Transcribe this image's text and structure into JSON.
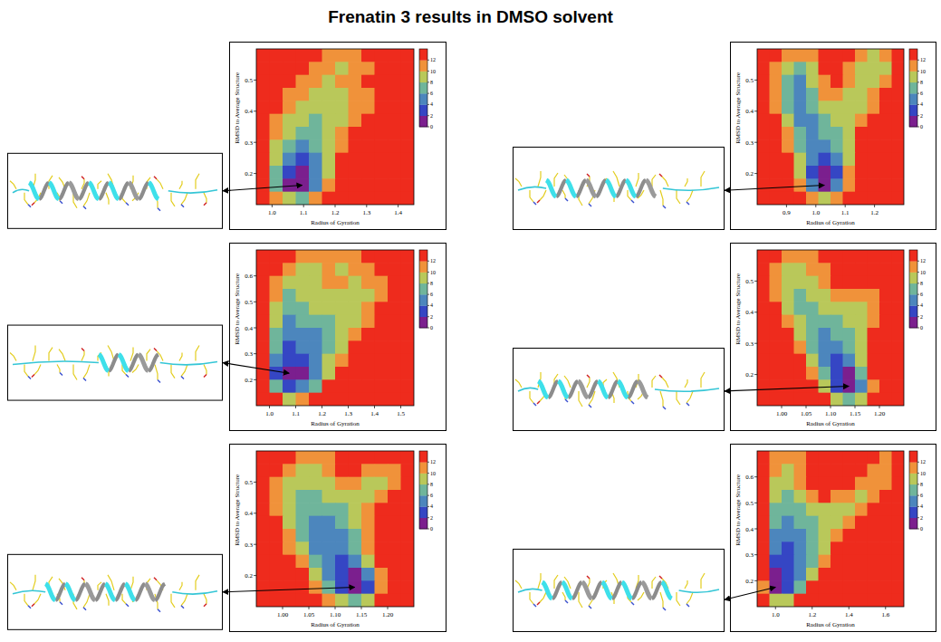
{
  "title": "Frenatin 3 results in DMSO solvent",
  "chart_data": [
    {
      "type": "heatmap",
      "x_label": "Radius of Gyration",
      "y_label": "RMSD to Average Structure",
      "xlim": [
        0.95,
        1.45
      ],
      "ylim": [
        0.1,
        0.6
      ],
      "xticks": [
        {
          "value": 1,
          "label": "1.0"
        },
        1.1,
        1.2,
        1.3,
        1.4
      ],
      "yticks": [
        0.2,
        0.3,
        0.4,
        0.5
      ],
      "colorbar_lim": [
        0,
        14
      ],
      "colorbar_ticks": [
        0,
        2,
        4,
        6,
        8,
        10,
        12
      ],
      "cells": [
        [
          13,
          13,
          13,
          13,
          13,
          11,
          10,
          11,
          13,
          13,
          13,
          13
        ],
        [
          13,
          13,
          13,
          13,
          11,
          10,
          9,
          10,
          11,
          13,
          13,
          13
        ],
        [
          13,
          13,
          13,
          11,
          10,
          9,
          10,
          11,
          13,
          13,
          13,
          13
        ],
        [
          13,
          13,
          11,
          10,
          9,
          8,
          9,
          10,
          11,
          13,
          13,
          13
        ],
        [
          13,
          13,
          10,
          9,
          8,
          8,
          9,
          10,
          11,
          13,
          13,
          13
        ],
        [
          13,
          11,
          9,
          8,
          7,
          8,
          9,
          11,
          13,
          13,
          13,
          13
        ],
        [
          13,
          10,
          8,
          6,
          7,
          8,
          10,
          12,
          13,
          13,
          13,
          13
        ],
        [
          13,
          9,
          6,
          5,
          6,
          8,
          11,
          13,
          13,
          13,
          13,
          13
        ],
        [
          13,
          8,
          4,
          3,
          5,
          8,
          12,
          13,
          13,
          13,
          13,
          13
        ],
        [
          13,
          6,
          2,
          1,
          4,
          9,
          13,
          13,
          13,
          13,
          13,
          13
        ],
        [
          13,
          7,
          1,
          0,
          5,
          11,
          13,
          13,
          13,
          13,
          13,
          13
        ],
        [
          13,
          11,
          8,
          7,
          10,
          13,
          13,
          13,
          13,
          13,
          13,
          13
        ]
      ]
    },
    {
      "type": "heatmap",
      "x_label": "Radius of Gyration",
      "y_label": "RMSD to Average Structure",
      "xlim": [
        0.8,
        1.3
      ],
      "ylim": [
        0.1,
        0.6
      ],
      "xticks": [
        0.9,
        {
          "value": 1,
          "label": "1.0"
        },
        1.1,
        1.2
      ],
      "yticks": [
        0.2,
        0.3,
        0.4,
        0.5
      ],
      "colorbar_lim": [
        0,
        14
      ],
      "colorbar_ticks": [
        0,
        2,
        4,
        6,
        8,
        10,
        12
      ],
      "cells": [
        [
          13,
          13,
          11,
          10,
          11,
          13,
          13,
          13,
          10,
          9,
          10,
          13
        ],
        [
          13,
          11,
          8,
          7,
          9,
          12,
          13,
          11,
          9,
          8,
          9,
          12
        ],
        [
          13,
          10,
          6,
          5,
          8,
          11,
          12,
          10,
          8,
          9,
          11,
          13
        ],
        [
          13,
          10,
          6,
          4,
          7,
          10,
          10,
          9,
          8,
          10,
          13,
          13
        ],
        [
          13,
          11,
          7,
          4,
          6,
          8,
          9,
          8,
          9,
          11,
          13,
          13
        ],
        [
          13,
          12,
          8,
          5,
          5,
          7,
          8,
          8,
          10,
          13,
          13,
          13
        ],
        [
          13,
          13,
          10,
          6,
          4,
          6,
          7,
          9,
          12,
          13,
          13,
          13
        ],
        [
          13,
          13,
          11,
          7,
          4,
          4,
          6,
          9,
          13,
          13,
          13,
          13
        ],
        [
          13,
          13,
          12,
          8,
          4,
          2,
          4,
          9,
          13,
          13,
          13,
          13
        ],
        [
          13,
          13,
          13,
          9,
          3,
          1,
          3,
          10,
          13,
          13,
          13,
          13
        ],
        [
          13,
          13,
          13,
          10,
          5,
          0,
          4,
          11,
          13,
          13,
          13,
          13
        ],
        [
          13,
          13,
          13,
          13,
          10,
          8,
          10,
          13,
          13,
          13,
          13,
          13
        ]
      ]
    },
    {
      "type": "heatmap",
      "x_label": "Radius of Gyration",
      "y_label": "RMSD to Average Structure",
      "xlim": [
        0.95,
        1.55
      ],
      "ylim": [
        0.1,
        0.7
      ],
      "xticks": [
        {
          "value": 1,
          "label": "1.0"
        },
        1.1,
        1.2,
        1.3,
        1.4,
        1.5
      ],
      "yticks": [
        0.2,
        0.3,
        0.4,
        0.5,
        0.6
      ],
      "colorbar_lim": [
        0,
        14
      ],
      "colorbar_ticks": [
        0,
        2,
        4,
        6,
        8,
        10,
        12
      ],
      "cells": [
        [
          13,
          13,
          13,
          11,
          10,
          11,
          10,
          11,
          13,
          13,
          13,
          13
        ],
        [
          13,
          13,
          11,
          9,
          9,
          10,
          9,
          10,
          11,
          13,
          13,
          13
        ],
        [
          13,
          11,
          9,
          8,
          9,
          10,
          10,
          9,
          10,
          11,
          13,
          13
        ],
        [
          13,
          10,
          7,
          8,
          9,
          9,
          9,
          8,
          9,
          10,
          13,
          13
        ],
        [
          13,
          9,
          6,
          7,
          8,
          8,
          8,
          9,
          10,
          12,
          13,
          13
        ],
        [
          13,
          8,
          5,
          6,
          7,
          7,
          8,
          9,
          11,
          13,
          13,
          13
        ],
        [
          13,
          7,
          4,
          5,
          5,
          6,
          8,
          10,
          13,
          13,
          13,
          13
        ],
        [
          13,
          6,
          3,
          4,
          5,
          7,
          9,
          12,
          13,
          13,
          13,
          13
        ],
        [
          13,
          4,
          2,
          3,
          5,
          8,
          11,
          13,
          13,
          13,
          13,
          13
        ],
        [
          13,
          3,
          0,
          1,
          4,
          9,
          13,
          13,
          13,
          13,
          13,
          13
        ],
        [
          13,
          6,
          2,
          4,
          7,
          12,
          13,
          13,
          13,
          13,
          13,
          13
        ],
        [
          13,
          12,
          9,
          10,
          12,
          13,
          13,
          13,
          13,
          13,
          13,
          13
        ]
      ]
    },
    {
      "type": "heatmap",
      "x_label": "Radius of Gyration",
      "y_label": "RMSD to Average Structure",
      "xlim": [
        0.95,
        1.25
      ],
      "ylim": [
        0.1,
        0.6
      ],
      "xticks": [
        {
          "value": 1,
          "label": "1.00"
        },
        1.05,
        {
          "value": 1.1,
          "label": "1.10"
        },
        1.15,
        {
          "value": 1.2,
          "label": "1.20"
        }
      ],
      "yticks": [
        0.2,
        0.3,
        0.4,
        0.5
      ],
      "colorbar_lim": [
        0,
        14
      ],
      "colorbar_ticks": [
        0,
        2,
        4,
        6,
        8,
        10,
        12
      ],
      "cells": [
        [
          13,
          13,
          11,
          10,
          11,
          13,
          13,
          13,
          13,
          13,
          13,
          13
        ],
        [
          13,
          11,
          9,
          9,
          10,
          11,
          13,
          13,
          13,
          13,
          13,
          13
        ],
        [
          13,
          10,
          8,
          8,
          9,
          10,
          12,
          13,
          13,
          13,
          13,
          13
        ],
        [
          13,
          11,
          8,
          7,
          8,
          9,
          10,
          11,
          10,
          11,
          13,
          13
        ],
        [
          13,
          12,
          9,
          7,
          7,
          8,
          9,
          9,
          9,
          10,
          12,
          13
        ],
        [
          13,
          13,
          10,
          8,
          6,
          6,
          7,
          8,
          9,
          11,
          13,
          13
        ],
        [
          13,
          13,
          12,
          9,
          6,
          5,
          6,
          7,
          9,
          12,
          13,
          13
        ],
        [
          13,
          13,
          13,
          10,
          7,
          4,
          4,
          6,
          9,
          13,
          13,
          13
        ],
        [
          13,
          13,
          13,
          12,
          9,
          5,
          3,
          4,
          8,
          13,
          13,
          13
        ],
        [
          13,
          13,
          13,
          13,
          11,
          7,
          2,
          1,
          6,
          12,
          13,
          13
        ],
        [
          13,
          13,
          13,
          13,
          13,
          9,
          3,
          0,
          4,
          11,
          13,
          13
        ],
        [
          13,
          13,
          13,
          13,
          13,
          12,
          9,
          7,
          9,
          13,
          13,
          13
        ]
      ]
    },
    {
      "type": "heatmap",
      "x_label": "Radius of Gyration",
      "y_label": "RMSD to Average Structure",
      "xlim": [
        0.95,
        1.25
      ],
      "ylim": [
        0.1,
        0.6
      ],
      "xticks": [
        {
          "value": 1,
          "label": "1.00"
        },
        1.05,
        {
          "value": 1.1,
          "label": "1.10"
        },
        1.15,
        {
          "value": 1.2,
          "label": "1.20"
        }
      ],
      "yticks": [
        0.2,
        0.3,
        0.4,
        0.5
      ],
      "colorbar_lim": [
        0,
        14
      ],
      "colorbar_ticks": [
        0,
        2,
        4,
        6,
        8,
        10,
        12
      ],
      "cells": [
        [
          13,
          13,
          13,
          11,
          10,
          11,
          13,
          13,
          13,
          13,
          13,
          13
        ],
        [
          13,
          13,
          11,
          9,
          9,
          10,
          12,
          13,
          11,
          10,
          11,
          13
        ],
        [
          13,
          11,
          9,
          8,
          8,
          9,
          10,
          10,
          9,
          9,
          11,
          13
        ],
        [
          13,
          10,
          8,
          7,
          7,
          8,
          8,
          8,
          9,
          10,
          13,
          13
        ],
        [
          13,
          11,
          8,
          6,
          6,
          6,
          7,
          8,
          10,
          12,
          13,
          13
        ],
        [
          13,
          12,
          9,
          6,
          5,
          5,
          6,
          8,
          11,
          13,
          13,
          13
        ],
        [
          13,
          13,
          10,
          7,
          5,
          4,
          5,
          7,
          11,
          13,
          13,
          13
        ],
        [
          13,
          13,
          11,
          8,
          5,
          4,
          4,
          6,
          10,
          13,
          13,
          13
        ],
        [
          13,
          13,
          13,
          10,
          6,
          4,
          3,
          4,
          8,
          12,
          13,
          13
        ],
        [
          13,
          13,
          13,
          12,
          8,
          5,
          2,
          1,
          5,
          11,
          13,
          13
        ],
        [
          13,
          13,
          13,
          13,
          11,
          7,
          2,
          0,
          3,
          10,
          13,
          13
        ],
        [
          13,
          13,
          13,
          13,
          13,
          11,
          8,
          6,
          8,
          13,
          13,
          13
        ]
      ]
    },
    {
      "type": "heatmap",
      "x_label": "Radius of Gyration",
      "y_label": "RMSD to Average Structure",
      "xlim": [
        0.9,
        1.7
      ],
      "ylim": [
        0.1,
        0.7
      ],
      "xticks": [
        {
          "value": 1,
          "label": "1.0"
        },
        1.2,
        1.4,
        1.6
      ],
      "yticks": [
        0.2,
        0.3,
        0.4,
        0.5,
        0.6
      ],
      "colorbar_lim": [
        0,
        14
      ],
      "colorbar_ticks": [
        0,
        2,
        4,
        6,
        8,
        10,
        12
      ],
      "cells": [
        [
          13,
          11,
          10,
          11,
          13,
          13,
          13,
          13,
          13,
          13,
          11,
          13
        ],
        [
          13,
          10,
          9,
          10,
          13,
          13,
          13,
          13,
          13,
          11,
          10,
          13
        ],
        [
          13,
          9,
          8,
          10,
          12,
          13,
          13,
          13,
          11,
          10,
          11,
          13
        ],
        [
          13,
          8,
          7,
          9,
          11,
          12,
          11,
          10,
          9,
          10,
          13,
          13
        ],
        [
          13,
          7,
          6,
          7,
          9,
          9,
          9,
          9,
          10,
          12,
          13,
          13
        ],
        [
          13,
          6,
          5,
          6,
          7,
          8,
          9,
          10,
          12,
          13,
          13,
          13
        ],
        [
          13,
          5,
          4,
          5,
          7,
          8,
          10,
          12,
          13,
          13,
          13,
          13
        ],
        [
          13,
          4,
          3,
          5,
          7,
          9,
          12,
          13,
          13,
          13,
          13,
          13
        ],
        [
          13,
          3,
          2,
          4,
          7,
          11,
          13,
          13,
          13,
          13,
          13,
          13
        ],
        [
          12,
          1,
          2,
          5,
          9,
          13,
          13,
          13,
          13,
          13,
          13,
          13
        ],
        [
          11,
          0,
          3,
          7,
          12,
          13,
          13,
          13,
          13,
          13,
          13,
          13
        ],
        [
          13,
          8,
          9,
          12,
          13,
          13,
          13,
          13,
          13,
          13,
          13,
          13
        ]
      ]
    }
  ]
}
